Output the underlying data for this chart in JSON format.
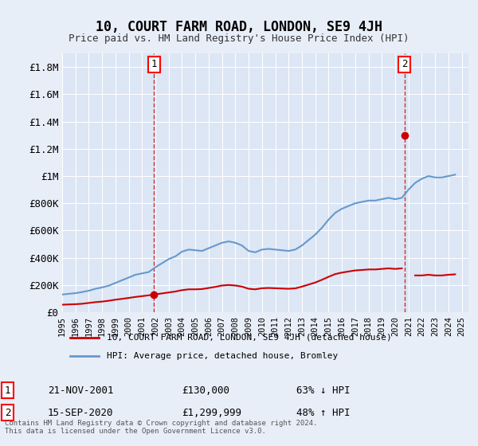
{
  "title": "10, COURT FARM ROAD, LONDON, SE9 4JH",
  "subtitle": "Price paid vs. HM Land Registry's House Price Index (HPI)",
  "background_color": "#e8eef8",
  "plot_bg_color": "#dce6f5",
  "ylim": [
    0,
    1900000
  ],
  "yticks": [
    0,
    200000,
    400000,
    600000,
    800000,
    1000000,
    1200000,
    1400000,
    1600000,
    1800000
  ],
  "ytick_labels": [
    "£0",
    "£200K",
    "£400K",
    "£600K",
    "£800K",
    "£1M",
    "£1.2M",
    "£1.4M",
    "£1.6M",
    "£1.8M"
  ],
  "xlim_start": 1995.0,
  "xlim_end": 2025.5,
  "hpi_color": "#6699cc",
  "price_color": "#cc0000",
  "sale1_year": 2001.9,
  "sale1_price": 130000,
  "sale2_year": 2020.7,
  "sale2_price": 1299999,
  "legend_line1": "10, COURT FARM ROAD, LONDON, SE9 4JH (detached house)",
  "legend_line2": "HPI: Average price, detached house, Bromley",
  "annotation1_label": "1",
  "annotation1_date": "21-NOV-2001",
  "annotation1_price": "£130,000",
  "annotation1_hpi": "63% ↓ HPI",
  "annotation2_label": "2",
  "annotation2_date": "15-SEP-2020",
  "annotation2_price": "£1,299,999",
  "annotation2_hpi": "48% ↑ HPI",
  "footer": "Contains HM Land Registry data © Crown copyright and database right 2024.\nThis data is licensed under the Open Government Licence v3.0.",
  "hpi_x": [
    1995.0,
    1995.5,
    1996.0,
    1996.5,
    1997.0,
    1997.5,
    1998.0,
    1998.5,
    1999.0,
    1999.5,
    2000.0,
    2000.5,
    2001.0,
    2001.5,
    2002.0,
    2002.5,
    2003.0,
    2003.5,
    2004.0,
    2004.5,
    2005.0,
    2005.5,
    2006.0,
    2006.5,
    2007.0,
    2007.5,
    2008.0,
    2008.5,
    2009.0,
    2009.5,
    2010.0,
    2010.5,
    2011.0,
    2011.5,
    2012.0,
    2012.5,
    2013.0,
    2013.5,
    2014.0,
    2014.5,
    2015.0,
    2015.5,
    2016.0,
    2016.5,
    2017.0,
    2017.5,
    2018.0,
    2018.5,
    2019.0,
    2019.5,
    2020.0,
    2020.5,
    2021.0,
    2021.5,
    2022.0,
    2022.5,
    2023.0,
    2023.5,
    2024.0,
    2024.5
  ],
  "hpi_y": [
    130000,
    135000,
    140000,
    148000,
    158000,
    172000,
    182000,
    195000,
    215000,
    235000,
    255000,
    275000,
    285000,
    295000,
    330000,
    360000,
    390000,
    410000,
    445000,
    460000,
    455000,
    450000,
    470000,
    490000,
    510000,
    520000,
    510000,
    490000,
    450000,
    440000,
    460000,
    465000,
    460000,
    455000,
    450000,
    460000,
    490000,
    530000,
    570000,
    620000,
    680000,
    730000,
    760000,
    780000,
    800000,
    810000,
    820000,
    820000,
    830000,
    840000,
    830000,
    840000,
    900000,
    950000,
    980000,
    1000000,
    990000,
    990000,
    1000000,
    1010000
  ],
  "price_x": [
    1995.0,
    1995.5,
    1996.0,
    1996.5,
    1997.0,
    1997.5,
    1998.0,
    1998.5,
    1999.0,
    1999.5,
    2000.0,
    2000.5,
    2001.0,
    2001.5,
    2001.9,
    2002.5,
    2003.0,
    2003.5,
    2004.0,
    2004.5,
    2005.0,
    2005.5,
    2006.0,
    2006.5,
    2007.0,
    2007.5,
    2008.0,
    2008.5,
    2009.0,
    2009.5,
    2010.0,
    2010.5,
    2011.0,
    2011.5,
    2012.0,
    2012.5,
    2013.0,
    2013.5,
    2014.0,
    2014.5,
    2015.0,
    2015.5,
    2016.0,
    2016.5,
    2017.0,
    2017.5,
    2018.0,
    2018.5,
    2019.0,
    2019.5,
    2020.0,
    2020.5,
    2020.7,
    2021.5,
    2022.0,
    2022.5,
    2023.0,
    2023.5,
    2024.0,
    2024.5
  ],
  "price_y": [
    55000,
    57000,
    59000,
    62000,
    68000,
    74000,
    78000,
    84000,
    92000,
    98000,
    105000,
    112000,
    118000,
    124000,
    130000,
    138000,
    145000,
    152000,
    162000,
    168000,
    168000,
    170000,
    178000,
    186000,
    196000,
    200000,
    196000,
    188000,
    172000,
    168000,
    176000,
    178000,
    176000,
    174000,
    172000,
    175000,
    188000,
    203000,
    218000,
    238000,
    260000,
    280000,
    291000,
    299000,
    307000,
    310000,
    314000,
    314000,
    318000,
    322000,
    318000,
    322000,
    1299999,
    270000,
    270000,
    275000,
    270000,
    270000,
    275000,
    278000
  ]
}
